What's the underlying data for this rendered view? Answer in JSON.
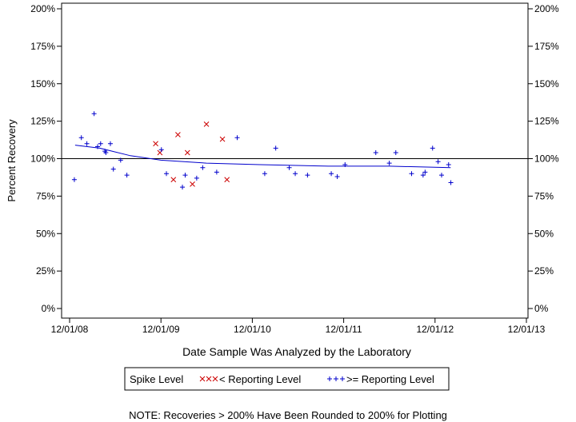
{
  "chart_data": {
    "type": "scatter",
    "xlabel": "Date Sample Was Analyzed by the Laboratory",
    "ylabel": "Percent Recovery",
    "xlim": [
      "2008-12-01",
      "2013-12-01"
    ],
    "ylim": [
      0,
      200
    ],
    "x_ticks": [
      "12/01/08",
      "12/01/09",
      "12/01/10",
      "12/01/11",
      "12/01/12",
      "12/01/13"
    ],
    "y_ticks": [
      "0%",
      "25%",
      "50%",
      "75%",
      "100%",
      "125%",
      "150%",
      "175%",
      "200%"
    ],
    "reference_line": 100,
    "grid": false,
    "legend_position": "bottom",
    "legend_title": "Spike Level",
    "note": "NOTE: Recoveries > 200% Have Been Rounded to 200% for Plotting",
    "series": [
      {
        "name": "< Reporting Level",
        "marker": "x",
        "color": "#cc0000",
        "points": [
          {
            "x": "2009-11-10",
            "y": 110
          },
          {
            "x": "2009-11-27",
            "y": 104
          },
          {
            "x": "2010-01-20",
            "y": 86
          },
          {
            "x": "2010-02-07",
            "y": 116
          },
          {
            "x": "2010-03-17",
            "y": 104
          },
          {
            "x": "2010-04-06",
            "y": 83
          },
          {
            "x": "2010-06-01",
            "y": 123
          },
          {
            "x": "2010-08-04",
            "y": 113
          },
          {
            "x": "2010-08-22",
            "y": 86
          }
        ]
      },
      {
        "name": ">= Reporting Level",
        "marker": "+",
        "color": "#0000cc",
        "points": [
          {
            "x": "2008-12-20",
            "y": 86
          },
          {
            "x": "2009-01-17",
            "y": 114
          },
          {
            "x": "2009-02-08",
            "y": 110
          },
          {
            "x": "2009-03-09",
            "y": 130
          },
          {
            "x": "2009-03-23",
            "y": 108
          },
          {
            "x": "2009-04-04",
            "y": 110
          },
          {
            "x": "2009-04-21",
            "y": 105
          },
          {
            "x": "2009-04-25",
            "y": 104
          },
          {
            "x": "2009-05-13",
            "y": 110
          },
          {
            "x": "2009-05-25",
            "y": 93
          },
          {
            "x": "2009-06-23",
            "y": 99
          },
          {
            "x": "2009-07-18",
            "y": 89
          },
          {
            "x": "2009-12-03",
            "y": 106
          },
          {
            "x": "2009-12-23",
            "y": 90
          },
          {
            "x": "2010-02-25",
            "y": 81
          },
          {
            "x": "2010-03-08",
            "y": 89
          },
          {
            "x": "2010-04-23",
            "y": 87
          },
          {
            "x": "2010-05-17",
            "y": 94
          },
          {
            "x": "2010-07-12",
            "y": 91
          },
          {
            "x": "2010-10-02",
            "y": 114
          },
          {
            "x": "2011-01-20",
            "y": 90
          },
          {
            "x": "2011-03-05",
            "y": 107
          },
          {
            "x": "2011-04-28",
            "y": 94
          },
          {
            "x": "2011-05-22",
            "y": 90
          },
          {
            "x": "2011-07-10",
            "y": 89
          },
          {
            "x": "2011-10-13",
            "y": 90
          },
          {
            "x": "2011-11-06",
            "y": 88
          },
          {
            "x": "2011-12-07",
            "y": 96
          },
          {
            "x": "2012-04-08",
            "y": 104
          },
          {
            "x": "2012-06-01",
            "y": 97
          },
          {
            "x": "2012-06-27",
            "y": 104
          },
          {
            "x": "2012-08-29",
            "y": 90
          },
          {
            "x": "2012-10-14",
            "y": 89
          },
          {
            "x": "2012-10-22",
            "y": 91
          },
          {
            "x": "2012-11-21",
            "y": 107
          },
          {
            "x": "2012-12-13",
            "y": 98
          },
          {
            "x": "2012-12-27",
            "y": 89
          },
          {
            "x": "2013-01-24",
            "y": 96
          },
          {
            "x": "2013-02-02",
            "y": 84
          }
        ]
      }
    ],
    "trend_line": {
      "color": "#0000cc",
      "points": [
        {
          "x": "2008-12-23",
          "y": 109
        },
        {
          "x": "2009-04-01",
          "y": 107
        },
        {
          "x": "2009-08-01",
          "y": 102
        },
        {
          "x": "2009-12-01",
          "y": 99
        },
        {
          "x": "2010-06-01",
          "y": 97
        },
        {
          "x": "2011-01-01",
          "y": 96
        },
        {
          "x": "2011-10-01",
          "y": 95
        },
        {
          "x": "2012-06-01",
          "y": 95
        },
        {
          "x": "2013-02-01",
          "y": 94
        }
      ]
    }
  }
}
